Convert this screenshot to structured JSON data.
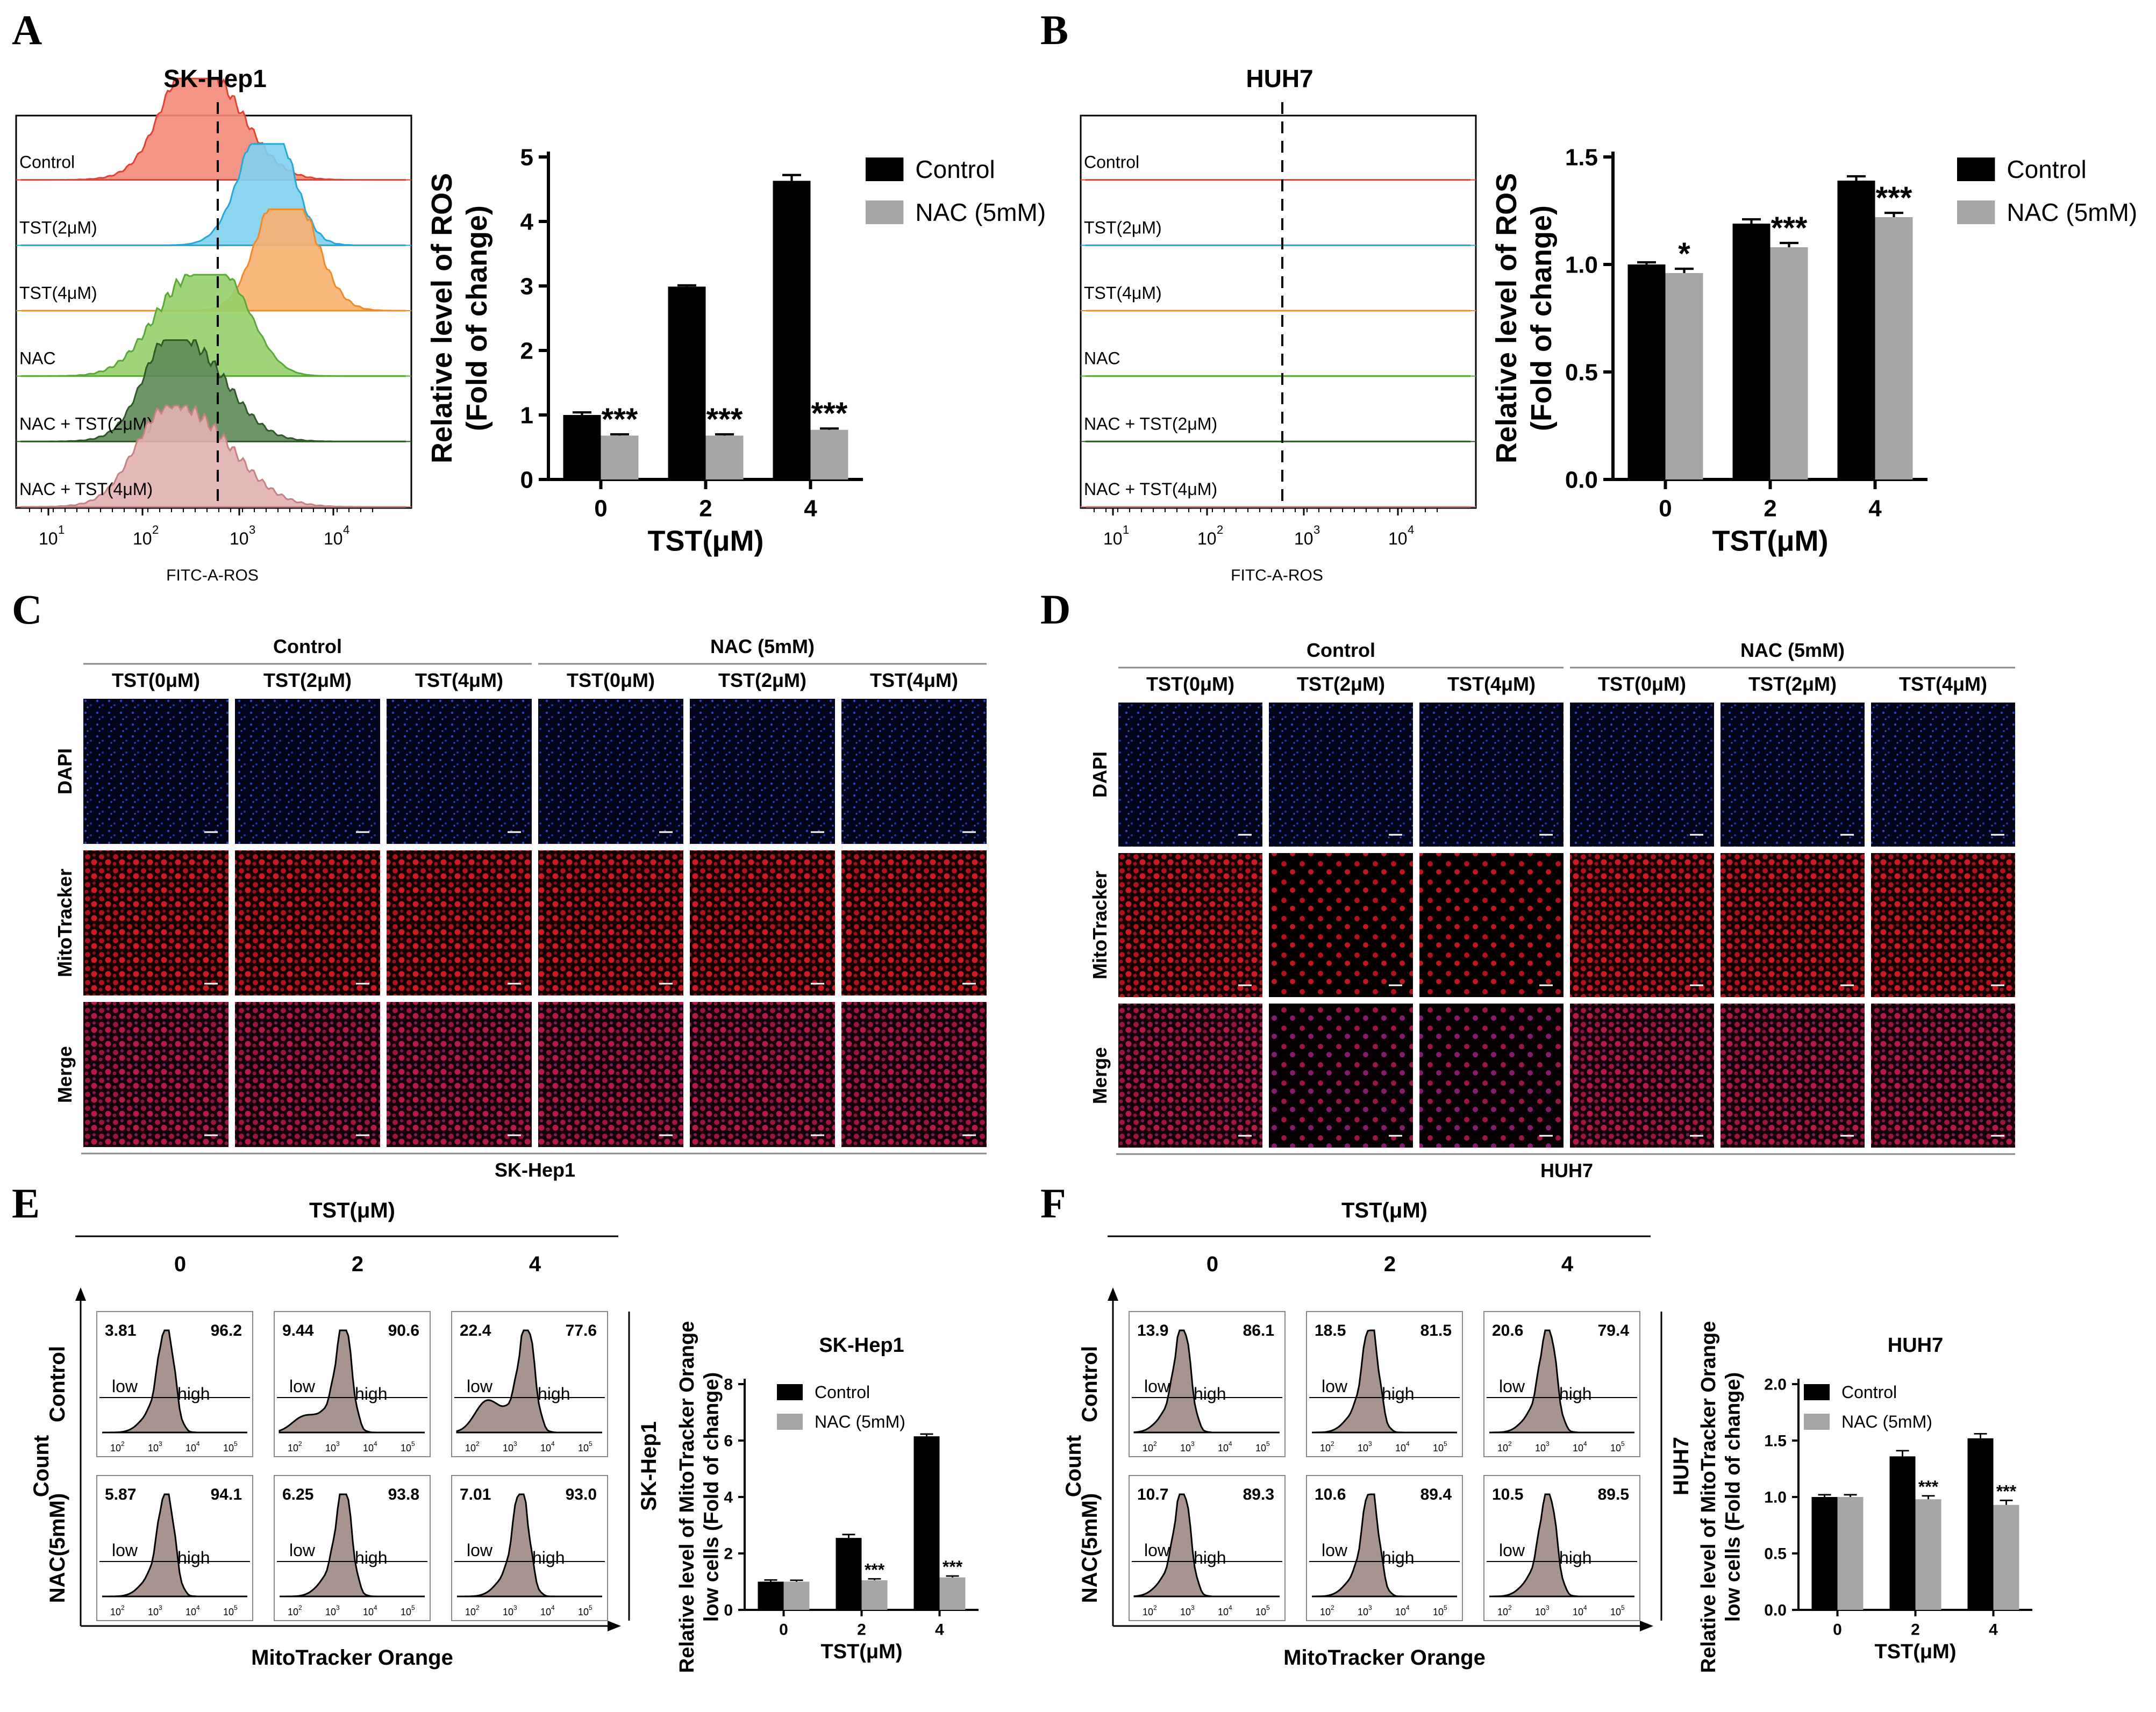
{
  "panels": {
    "A": {
      "letter": "A",
      "title": "SK-Hep1",
      "x_axis_label": "FITC-A-ROS",
      "histogram_labels": [
        "Control",
        "TST(2μM)",
        "TST(4μM)",
        "NAC",
        "NAC + TST(2μM)",
        "NAC + TST(4μM)"
      ],
      "x_ticks": [
        "10",
        "10",
        "10",
        "10"
      ],
      "x_tick_exps": [
        "1",
        "2",
        "3",
        "4"
      ]
    },
    "B": {
      "letter": "B",
      "title": "HUH7",
      "x_axis_label": "FITC-A-ROS",
      "histogram_labels": [
        "Control",
        "TST(2μM)",
        "TST(4μM)",
        "NAC",
        "NAC + TST(2μM)",
        "NAC + TST(4μM)"
      ],
      "x_ticks": [
        "10",
        "10",
        "10",
        "10"
      ],
      "x_tick_exps": [
        "1",
        "2",
        "3",
        "4"
      ]
    },
    "C": {
      "letter": "C",
      "cell_line": "SK-Hep1"
    },
    "D": {
      "letter": "D",
      "cell_line": "HUH7"
    },
    "E": {
      "letter": "E",
      "cell_line": "SK-Hep1"
    },
    "F": {
      "letter": "F",
      "cell_line": "HUH7"
    }
  },
  "microscopy": {
    "groups": [
      "Control",
      "NAC (5mM)"
    ],
    "conditions": [
      "TST(0μM)",
      "TST(2μM)",
      "TST(4μM)",
      "TST(0μM)",
      "TST(2μM)",
      "TST(4μM)"
    ],
    "rows": [
      "DAPI",
      "MitoTracker",
      "Merge"
    ],
    "colors": {
      "DAPI": "#1b3bb0",
      "MitoTracker": "#e0202a",
      "Merge": "#4a1a1a"
    }
  },
  "flow": {
    "top_label": "TST(μM)",
    "col_labels": [
      "0",
      "2",
      "4"
    ],
    "row_labels": [
      "Control",
      "NAC(5mM)"
    ],
    "y_axis_label": "Count",
    "x_axis_label": "MitoTracker Orange",
    "gate_low": "low",
    "gate_high": "high",
    "E_values": [
      [
        "3.81",
        "96.2"
      ],
      [
        "9.44",
        "90.6"
      ],
      [
        "22.4",
        "77.6"
      ],
      [
        "5.87",
        "94.1"
      ],
      [
        "6.25",
        "93.8"
      ],
      [
        "7.01",
        "93.0"
      ]
    ],
    "F_values": [
      [
        "13.9",
        "86.1"
      ],
      [
        "18.5",
        "81.5"
      ],
      [
        "20.6",
        "79.4"
      ],
      [
        "10.7",
        "89.3"
      ],
      [
        "10.6",
        "89.4"
      ],
      [
        "10.5",
        "89.5"
      ]
    ],
    "tick_exps": [
      "2",
      "3",
      "4",
      "5"
    ]
  },
  "chart_data": [
    {
      "id": "A-bar",
      "type": "bar",
      "title": "",
      "categories": [
        "0",
        "2",
        "4"
      ],
      "series": [
        {
          "name": "Control",
          "values": [
            1.0,
            2.99,
            4.63
          ],
          "errors": [
            0.04,
            0.02,
            0.09
          ]
        },
        {
          "name": "NAC (5mM)",
          "values": [
            0.68,
            0.68,
            0.77
          ],
          "errors": [
            0.02,
            0.02,
            0.02
          ]
        }
      ],
      "significance": [
        "***",
        "***",
        "***"
      ],
      "xlabel": "TST(μM)",
      "ylabel": "Relative level of ROS",
      "ylabel2": "(Fold of change)",
      "ylim": [
        0,
        5
      ],
      "yticks": [
        0,
        1,
        2,
        3,
        4,
        5
      ],
      "ytick_labels": [
        "0",
        "1",
        "2",
        "3",
        "4",
        "5"
      ]
    },
    {
      "id": "B-bar",
      "type": "bar",
      "title": "",
      "categories": [
        "0",
        "2",
        "4"
      ],
      "series": [
        {
          "name": "Control",
          "values": [
            1.0,
            1.19,
            1.39
          ],
          "errors": [
            0.01,
            0.02,
            0.02
          ]
        },
        {
          "name": "NAC (5mM)",
          "values": [
            0.96,
            1.08,
            1.22
          ],
          "errors": [
            0.02,
            0.02,
            0.02
          ]
        }
      ],
      "significance": [
        "*",
        "***",
        "***"
      ],
      "xlabel": "TST(μM)",
      "ylabel": "Relative level of ROS",
      "ylabel2": "(Fold of change)",
      "ylim": [
        0,
        1.5
      ],
      "yticks": [
        0,
        0.5,
        1.0,
        1.5
      ],
      "ytick_labels": [
        "0.0",
        "0.5",
        "1.0",
        "1.5"
      ]
    },
    {
      "id": "E-bar",
      "type": "bar",
      "title": "SK-Hep1",
      "categories": [
        "0",
        "2",
        "4"
      ],
      "series": [
        {
          "name": "Control",
          "values": [
            1.0,
            2.55,
            6.15
          ],
          "errors": [
            0.06,
            0.12,
            0.08
          ]
        },
        {
          "name": "NAC (5mM)",
          "values": [
            1.0,
            1.05,
            1.15
          ],
          "errors": [
            0.05,
            0.05,
            0.05
          ]
        }
      ],
      "significance": [
        "",
        "***",
        "***"
      ],
      "xlabel": "TST(μM)",
      "ylabel": "Relative level of MitoTracker Orange",
      "ylabel2": "low cells (Fold of change)",
      "ylim": [
        0,
        8
      ],
      "yticks": [
        0,
        2,
        4,
        6,
        8
      ],
      "ytick_labels": [
        "0",
        "2",
        "4",
        "6",
        "8"
      ]
    },
    {
      "id": "F-bar",
      "type": "bar",
      "title": "HUH7",
      "categories": [
        "0",
        "2",
        "4"
      ],
      "series": [
        {
          "name": "Control",
          "values": [
            1.0,
            1.36,
            1.52
          ],
          "errors": [
            0.02,
            0.05,
            0.04
          ]
        },
        {
          "name": "NAC (5mM)",
          "values": [
            1.0,
            0.98,
            0.93
          ],
          "errors": [
            0.02,
            0.03,
            0.04
          ]
        }
      ],
      "significance": [
        "",
        "***",
        "***"
      ],
      "xlabel": "TST(μM)",
      "ylabel": "Relative level of MitoTracker Orange",
      "ylabel2": "low cells (Fold of change)",
      "ylim": [
        0,
        2.0
      ],
      "yticks": [
        0,
        0.5,
        1.0,
        1.5,
        2.0
      ],
      "ytick_labels": [
        "0.0",
        "0.5",
        "1.0",
        "1.5",
        "2.0"
      ]
    }
  ]
}
